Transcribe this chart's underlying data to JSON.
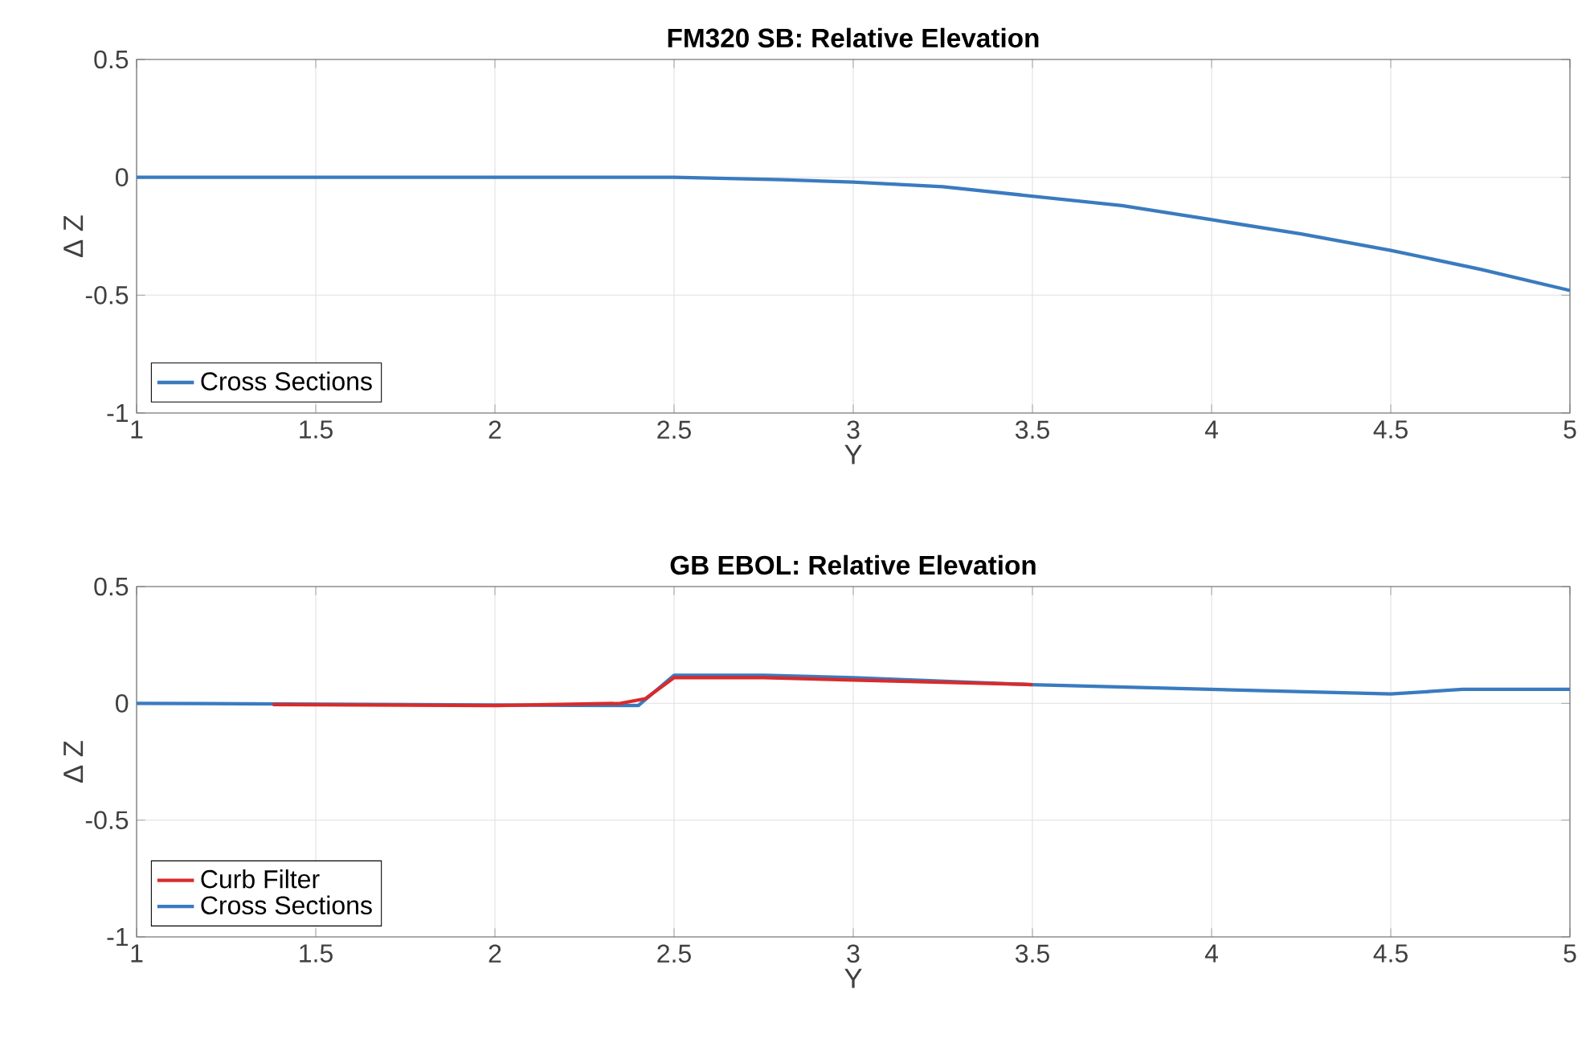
{
  "chart_data": [
    {
      "type": "line",
      "title": "FM320 SB: Relative Elevation",
      "xlabel": "Y",
      "ylabel": "Δ Z",
      "xlim": [
        1,
        5
      ],
      "ylim": [
        -1,
        0.5
      ],
      "xticks": [
        1,
        1.5,
        2,
        2.5,
        3,
        3.5,
        4,
        4.5,
        5
      ],
      "yticks": [
        -1,
        -0.5,
        0,
        0.5
      ],
      "grid": true,
      "legend": "bottom left",
      "series": [
        {
          "name": "Cross Sections",
          "color": "#3a7bbf",
          "x": [
            1,
            1.5,
            2,
            2.5,
            2.8,
            3,
            3.25,
            3.5,
            3.75,
            4,
            4.25,
            4.5,
            4.75,
            5
          ],
          "values": [
            0,
            0,
            0,
            0,
            -0.01,
            -0.02,
            -0.04,
            -0.08,
            -0.12,
            -0.18,
            -0.24,
            -0.31,
            -0.39,
            -0.48
          ]
        }
      ]
    },
    {
      "type": "line",
      "title": "GB EBOL: Relative Elevation",
      "xlabel": "Y",
      "ylabel": "Δ Z",
      "xlim": [
        1,
        5
      ],
      "ylim": [
        -1,
        0.5
      ],
      "xticks": [
        1,
        1.5,
        2,
        2.5,
        3,
        3.5,
        4,
        4.5,
        5
      ],
      "yticks": [
        -1,
        -0.5,
        0,
        0.5
      ],
      "grid": true,
      "legend": "bottom left",
      "series": [
        {
          "name": "Curb Filter",
          "color": "#d92b2b",
          "x": [
            1.38,
            2,
            2.35,
            2.42,
            2.5,
            2.75,
            3,
            3.25,
            3.5
          ],
          "values": [
            -0.005,
            -0.01,
            0,
            0.02,
            0.11,
            0.11,
            0.1,
            0.09,
            0.08
          ]
        },
        {
          "name": "Cross Sections",
          "color": "#3a7bbf",
          "x": [
            1,
            2.4,
            2.5,
            2.75,
            3,
            3.5,
            4,
            4.5,
            4.6,
            4.7,
            4.85,
            5
          ],
          "values": [
            0,
            -0.01,
            0.12,
            0.12,
            0.11,
            0.08,
            0.06,
            0.04,
            0.05,
            0.06,
            0.06,
            0.06
          ]
        }
      ]
    }
  ]
}
